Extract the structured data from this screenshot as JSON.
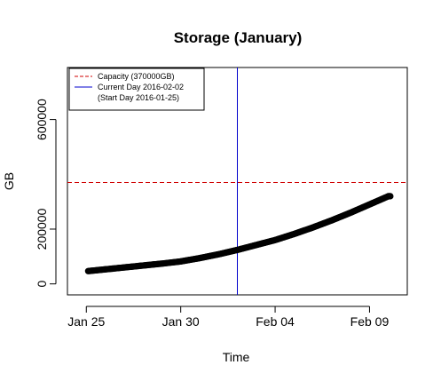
{
  "chart_data": {
    "type": "scatter",
    "title": "Storage (January)",
    "xlabel": "Time",
    "ylabel": "GB",
    "x_start": "2016-01-24",
    "x_end": "2016-02-11",
    "ylim": [
      -40000,
      790000
    ],
    "x_ticks": [
      {
        "date": "2016-01-25",
        "label": "Jan 25"
      },
      {
        "date": "2016-01-30",
        "label": "Jan 30"
      },
      {
        "date": "2016-02-04",
        "label": "Feb 04"
      },
      {
        "date": "2016-02-09",
        "label": "Feb 09"
      }
    ],
    "y_ticks": [
      0,
      200000,
      600000
    ],
    "series": [
      {
        "x": [
          "2016-01-25",
          "2016-01-26",
          "2016-01-27",
          "2016-01-28",
          "2016-01-29",
          "2016-01-30",
          "2016-01-31",
          "2016-02-01",
          "2016-02-02",
          "2016-02-03",
          "2016-02-04",
          "2016-02-05",
          "2016-02-06",
          "2016-02-07",
          "2016-02-08",
          "2016-02-09",
          "2016-02-10"
        ],
        "values": [
          46000,
          53000,
          60000,
          67000,
          74000,
          82000,
          94000,
          108000,
          124000,
          142000,
          160000,
          182000,
          206000,
          232000,
          260000,
          290000,
          320000
        ],
        "color": "#000000"
      }
    ],
    "hlines": [
      {
        "y": 370000,
        "color": "#d00000",
        "style": "dashed"
      }
    ],
    "vlines": [
      {
        "date": "2016-02-02",
        "color": "#0000cc"
      }
    ],
    "legend": {
      "position": "top-left",
      "items": [
        {
          "label": "Capacity (370000GB)",
          "color": "#d00000",
          "style": "dashed"
        },
        {
          "label": "Current Day 2016-02-02",
          "color": "#0000cc",
          "style": "solid"
        },
        {
          "label": "(Start Day 2016-01-25)",
          "color": null,
          "style": "none"
        }
      ]
    },
    "grid": false
  }
}
